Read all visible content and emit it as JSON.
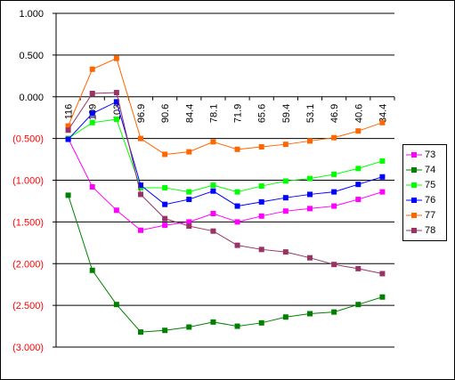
{
  "chart_data": {
    "type": "line",
    "title": "",
    "xlabel": "",
    "ylabel": "",
    "categories": [
      "116",
      "109",
      "103",
      "96.9",
      "90.6",
      "84.4",
      "78.1",
      "71.9",
      "65.6",
      "59.4",
      "53.1",
      "46.9",
      "40.6",
      "34.4"
    ],
    "category_display": [
      "116",
      "109",
      "103",
      "96.9",
      "90.6",
      "84.4",
      "78.1",
      "71.9",
      "65.6",
      "59.4",
      "53.1",
      "46.9",
      "40.6",
      "34.4"
    ],
    "ylim": [
      -3,
      1
    ],
    "yticks": [
      1,
      0.5,
      0,
      -0.5,
      -1,
      -1.5,
      -2,
      -2.5,
      -3
    ],
    "ytick_labels": [
      "1.000",
      "0.500",
      "0.000",
      "(0.500)",
      "(1.000)",
      "(1.500)",
      "(2.000)",
      "(2.500)",
      "(3.000)"
    ],
    "grid": true,
    "legend_position": "right",
    "series": [
      {
        "name": "73",
        "color": "#ff00ff",
        "values": [
          -0.5,
          -1.08,
          -1.36,
          -1.6,
          -1.54,
          -1.5,
          -1.4,
          -1.5,
          -1.43,
          -1.37,
          -1.34,
          -1.31,
          -1.23,
          -1.14
        ]
      },
      {
        "name": "74",
        "color": "#008000",
        "values": [
          -1.18,
          -2.08,
          -2.49,
          -2.82,
          -2.8,
          -2.76,
          -2.7,
          -2.75,
          -2.71,
          -2.64,
          -2.6,
          -2.58,
          -2.49,
          -2.4
        ]
      },
      {
        "name": "75",
        "color": "#00ff00",
        "values": [
          -0.5,
          -0.31,
          -0.27,
          -1.09,
          -1.09,
          -1.14,
          -1.06,
          -1.14,
          -1.07,
          -1.01,
          -0.98,
          -0.93,
          -0.86,
          -0.77
        ]
      },
      {
        "name": "76",
        "color": "#0000ff",
        "values": [
          -0.51,
          -0.2,
          -0.06,
          -1.06,
          -1.29,
          -1.23,
          -1.13,
          -1.31,
          -1.26,
          -1.21,
          -1.17,
          -1.14,
          -1.05,
          -0.96
        ]
      },
      {
        "name": "77",
        "color": "#ff6600",
        "values": [
          -0.35,
          0.33,
          0.46,
          -0.5,
          -0.69,
          -0.66,
          -0.54,
          -0.63,
          -0.6,
          -0.57,
          -0.53,
          -0.49,
          -0.41,
          -0.31
        ]
      },
      {
        "name": "78",
        "color": "#993366",
        "values": [
          -0.4,
          0.04,
          0.05,
          -1.17,
          -1.46,
          -1.55,
          -1.61,
          -1.78,
          -1.83,
          -1.86,
          -1.93,
          -2.01,
          -2.06,
          -2.12
        ]
      }
    ]
  }
}
